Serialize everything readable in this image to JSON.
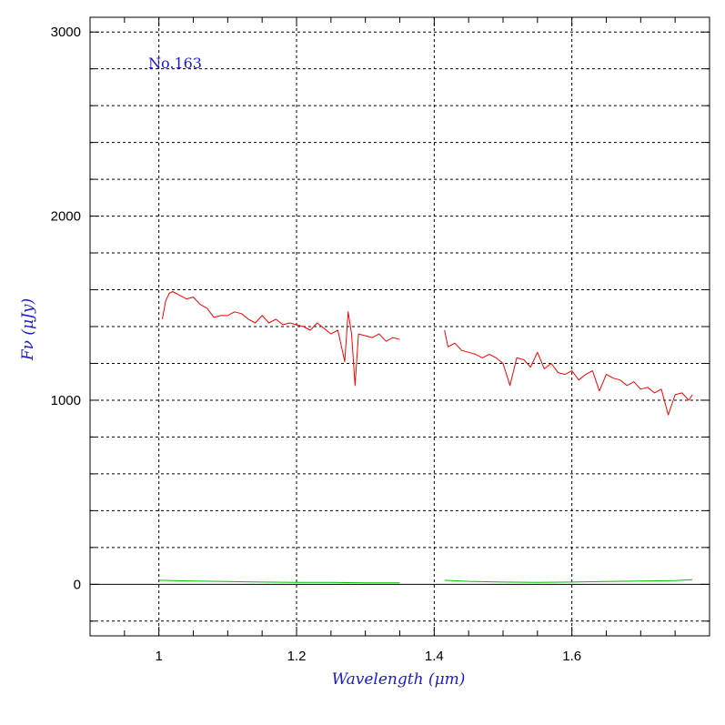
{
  "chart_data": {
    "type": "line",
    "title": "",
    "annotation": "No.163",
    "xlabel": "Wavelength (μm)",
    "ylabel": "Fν (μJy)",
    "xlim": [
      0.9,
      1.8
    ],
    "ylim": [
      -280,
      3080
    ],
    "x_ticks": [
      1,
      1.2,
      1.4,
      1.6
    ],
    "x_tick_labels": [
      "1",
      "1.2",
      "1.4",
      "1.6"
    ],
    "y_ticks": [
      0,
      1000,
      2000,
      3000
    ],
    "y_tick_labels": [
      "0",
      "1000",
      "2000",
      "3000"
    ],
    "grid": true,
    "colors": {
      "flux": "#ff0000",
      "error": "#00c000",
      "zero_line": "#000000",
      "text": "#1a1ad6"
    },
    "series": [
      {
        "role": "flux",
        "segments": [
          {
            "x": [
              1.005,
              1.01,
              1.015,
              1.02,
              1.03,
              1.04,
              1.05,
              1.06,
              1.07,
              1.08,
              1.09,
              1.1,
              1.11,
              1.12,
              1.13,
              1.14,
              1.15,
              1.16,
              1.17,
              1.18,
              1.19,
              1.2,
              1.21,
              1.22,
              1.23,
              1.24,
              1.25,
              1.26,
              1.27,
              1.275,
              1.28,
              1.285,
              1.29,
              1.3,
              1.31,
              1.32,
              1.33,
              1.34,
              1.35
            ],
            "y": [
              1440,
              1540,
              1580,
              1590,
              1570,
              1550,
              1560,
              1520,
              1500,
              1450,
              1460,
              1460,
              1480,
              1470,
              1440,
              1420,
              1460,
              1420,
              1440,
              1410,
              1420,
              1410,
              1400,
              1380,
              1420,
              1390,
              1360,
              1380,
              1210,
              1480,
              1360,
              1080,
              1360,
              1350,
              1340,
              1360,
              1320,
              1340,
              1330
            ]
          },
          {
            "x": [
              1.415,
              1.42,
              1.43,
              1.44,
              1.45,
              1.46,
              1.47,
              1.48,
              1.49,
              1.5,
              1.51,
              1.52,
              1.53,
              1.54,
              1.55,
              1.56,
              1.57,
              1.58,
              1.59,
              1.6,
              1.61,
              1.62,
              1.63,
              1.64,
              1.65,
              1.66,
              1.67,
              1.68,
              1.69,
              1.7,
              1.71,
              1.72,
              1.73,
              1.74,
              1.75,
              1.76,
              1.77,
              1.775
            ],
            "y": [
              1380,
              1290,
              1310,
              1270,
              1260,
              1250,
              1230,
              1250,
              1230,
              1200,
              1080,
              1230,
              1220,
              1180,
              1260,
              1170,
              1200,
              1150,
              1140,
              1160,
              1110,
              1140,
              1160,
              1050,
              1140,
              1120,
              1110,
              1080,
              1100,
              1060,
              1070,
              1040,
              1060,
              920,
              1030,
              1040,
              1000,
              1030
            ]
          }
        ]
      },
      {
        "role": "error",
        "segments": [
          {
            "x": [
              1.0,
              1.05,
              1.1,
              1.15,
              1.2,
              1.25,
              1.3,
              1.35
            ],
            "y": [
              22,
              18,
              15,
              12,
              10,
              10,
              8,
              8
            ]
          },
          {
            "x": [
              1.415,
              1.45,
              1.5,
              1.55,
              1.6,
              1.65,
              1.7,
              1.75,
              1.775
            ],
            "y": [
              22,
              16,
              12,
              10,
              12,
              15,
              18,
              20,
              26
            ]
          }
        ]
      }
    ]
  }
}
